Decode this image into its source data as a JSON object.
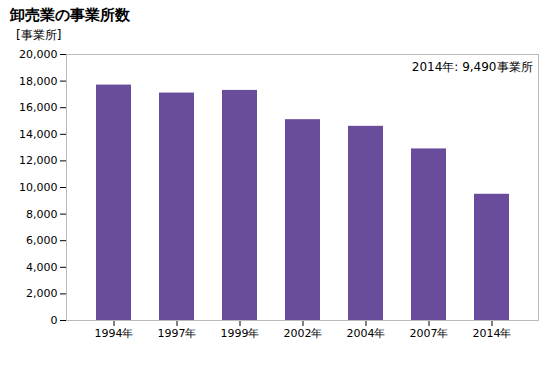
{
  "chart_data": {
    "type": "bar",
    "title": "卸売業の事業所数",
    "ylabel": "[事業所]",
    "annotation": "2014年: 9,490事業所",
    "categories": [
      "1994年",
      "1997年",
      "1999年",
      "2002年",
      "2004年",
      "2007年",
      "2014年"
    ],
    "values": [
      17700,
      17100,
      17300,
      15100,
      14600,
      12900,
      9490
    ],
    "color": "#6a4c9c",
    "ylim": [
      0,
      20000
    ],
    "yticks": [
      0,
      {
        "value": 2000,
        "label": "2,000"
      },
      {
        "value": 4000,
        "label": "4,000"
      },
      {
        "value": 6000,
        "label": "6,000"
      },
      {
        "value": 8000,
        "label": "8,000"
      },
      {
        "value": 10000,
        "label": "10,000"
      },
      {
        "value": 12000,
        "label": "12,000"
      },
      {
        "value": 14000,
        "label": "14,000"
      },
      {
        "value": 16000,
        "label": "16,000"
      },
      {
        "value": 18000,
        "label": "18,000"
      },
      {
        "value": 20000,
        "label": "20,000"
      }
    ],
    "grid": false
  }
}
